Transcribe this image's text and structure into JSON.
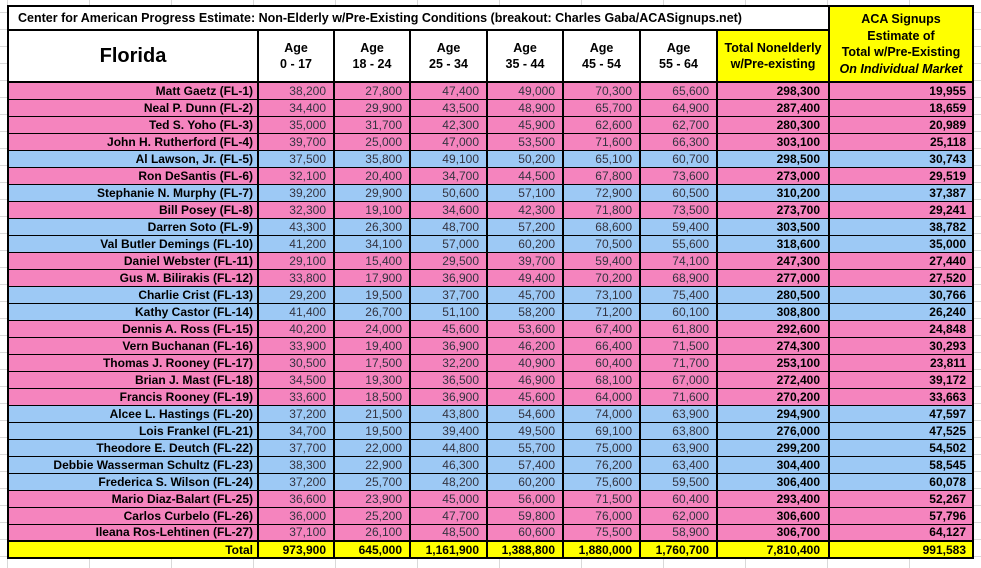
{
  "title": "Center for American Progress Estimate: Non-Elderly w/Pre-Existing Conditions (breakout: Charles Gaba/ACASignups.net)",
  "colors": {
    "republican_row": "#F584BE",
    "democrat_row": "#9DC9F5",
    "highlight_yellow": "#FFFF00",
    "border": "#000000",
    "number_text": "#333340"
  },
  "table": {
    "state_label": "Florida",
    "age_headers": [
      {
        "l1": "Age",
        "l2": "0 - 17"
      },
      {
        "l1": "Age",
        "l2": "18 - 24"
      },
      {
        "l1": "Age",
        "l2": "25 - 34"
      },
      {
        "l1": "Age",
        "l2": "35 - 44"
      },
      {
        "l1": "Age",
        "l2": "45 - 54"
      },
      {
        "l1": "Age",
        "l2": "55 - 64"
      }
    ],
    "total_header": {
      "l1": "Total Nonelderly",
      "l2": "w/Pre-existing"
    },
    "aca_header_lines": [
      "ACA Signups",
      "Estimate of",
      "Total w/Pre-Existing",
      "On Individual Market"
    ],
    "rows": [
      {
        "name": "Matt Gaetz (FL-1)",
        "party": "R",
        "ages": [
          "38,200",
          "27,800",
          "47,400",
          "49,000",
          "70,300",
          "65,600"
        ],
        "total": "298,300",
        "aca": "19,955"
      },
      {
        "name": "Neal P. Dunn (FL-2)",
        "party": "R",
        "ages": [
          "34,400",
          "29,900",
          "43,500",
          "48,900",
          "65,700",
          "64,900"
        ],
        "total": "287,400",
        "aca": "18,659"
      },
      {
        "name": "Ted S. Yoho (FL-3)",
        "party": "R",
        "ages": [
          "35,000",
          "31,700",
          "42,300",
          "45,900",
          "62,600",
          "62,700"
        ],
        "total": "280,300",
        "aca": "20,989"
      },
      {
        "name": "John H. Rutherford (FL-4)",
        "party": "R",
        "ages": [
          "39,700",
          "25,000",
          "47,000",
          "53,500",
          "71,600",
          "66,300"
        ],
        "total": "303,100",
        "aca": "25,118"
      },
      {
        "name": "Al Lawson, Jr. (FL-5)",
        "party": "D",
        "ages": [
          "37,500",
          "35,800",
          "49,100",
          "50,200",
          "65,100",
          "60,700"
        ],
        "total": "298,500",
        "aca": "30,743"
      },
      {
        "name": "Ron DeSantis (FL-6)",
        "party": "R",
        "ages": [
          "32,100",
          "20,400",
          "34,700",
          "44,500",
          "67,800",
          "73,600"
        ],
        "total": "273,000",
        "aca": "29,519"
      },
      {
        "name": "Stephanie N. Murphy (FL-7)",
        "party": "D",
        "ages": [
          "39,200",
          "29,900",
          "50,600",
          "57,100",
          "72,900",
          "60,500"
        ],
        "total": "310,200",
        "aca": "37,387"
      },
      {
        "name": "Bill Posey (FL-8)",
        "party": "R",
        "ages": [
          "32,300",
          "19,100",
          "34,600",
          "42,300",
          "71,800",
          "73,500"
        ],
        "total": "273,700",
        "aca": "29,241"
      },
      {
        "name": "Darren Soto (FL-9)",
        "party": "D",
        "ages": [
          "43,300",
          "26,300",
          "48,700",
          "57,200",
          "68,600",
          "59,400"
        ],
        "total": "303,500",
        "aca": "38,782"
      },
      {
        "name": "Val Butler Demings (FL-10)",
        "party": "D",
        "ages": [
          "41,200",
          "34,100",
          "57,000",
          "60,200",
          "70,500",
          "55,600"
        ],
        "total": "318,600",
        "aca": "35,000"
      },
      {
        "name": "Daniel Webster (FL-11)",
        "party": "R",
        "ages": [
          "29,100",
          "15,400",
          "29,500",
          "39,700",
          "59,400",
          "74,100"
        ],
        "total": "247,300",
        "aca": "27,440"
      },
      {
        "name": "Gus M. Bilirakis (FL-12)",
        "party": "R",
        "ages": [
          "33,800",
          "17,900",
          "36,900",
          "49,400",
          "70,200",
          "68,900"
        ],
        "total": "277,000",
        "aca": "27,520"
      },
      {
        "name": "Charlie Crist (FL-13)",
        "party": "D",
        "ages": [
          "29,200",
          "19,500",
          "37,700",
          "45,700",
          "73,100",
          "75,400"
        ],
        "total": "280,500",
        "aca": "30,766"
      },
      {
        "name": "Kathy Castor (FL-14)",
        "party": "D",
        "ages": [
          "41,400",
          "26,700",
          "51,100",
          "58,200",
          "71,200",
          "60,100"
        ],
        "total": "308,800",
        "aca": "26,240"
      },
      {
        "name": "Dennis A. Ross (FL-15)",
        "party": "R",
        "ages": [
          "40,200",
          "24,000",
          "45,600",
          "53,600",
          "67,400",
          "61,800"
        ],
        "total": "292,600",
        "aca": "24,848"
      },
      {
        "name": "Vern Buchanan (FL-16)",
        "party": "R",
        "ages": [
          "33,900",
          "19,400",
          "36,900",
          "46,200",
          "66,400",
          "71,500"
        ],
        "total": "274,300",
        "aca": "30,293"
      },
      {
        "name": "Thomas J. Rooney (FL-17)",
        "party": "R",
        "ages": [
          "30,500",
          "17,500",
          "32,200",
          "40,900",
          "60,400",
          "71,700"
        ],
        "total": "253,100",
        "aca": "23,811"
      },
      {
        "name": "Brian J. Mast (FL-18)",
        "party": "R",
        "ages": [
          "34,500",
          "19,300",
          "36,500",
          "46,900",
          "68,100",
          "67,000"
        ],
        "total": "272,400",
        "aca": "39,172"
      },
      {
        "name": "Francis Rooney (FL-19)",
        "party": "R",
        "ages": [
          "33,600",
          "18,500",
          "36,900",
          "45,600",
          "64,000",
          "71,600"
        ],
        "total": "270,200",
        "aca": "33,663"
      },
      {
        "name": "Alcee L. Hastings (FL-20)",
        "party": "D",
        "ages": [
          "37,200",
          "21,500",
          "43,800",
          "54,600",
          "74,000",
          "63,900"
        ],
        "total": "294,900",
        "aca": "47,597"
      },
      {
        "name": "Lois Frankel (FL-21)",
        "party": "D",
        "ages": [
          "34,700",
          "19,500",
          "39,400",
          "49,500",
          "69,100",
          "63,800"
        ],
        "total": "276,000",
        "aca": "47,525"
      },
      {
        "name": "Theodore E. Deutch (FL-22)",
        "party": "D",
        "ages": [
          "37,700",
          "22,000",
          "44,800",
          "55,700",
          "75,000",
          "63,900"
        ],
        "total": "299,200",
        "aca": "54,502"
      },
      {
        "name": "Debbie Wasserman Schultz (FL-23)",
        "party": "D",
        "ages": [
          "38,300",
          "22,900",
          "46,300",
          "57,400",
          "76,200",
          "63,400"
        ],
        "total": "304,400",
        "aca": "58,545"
      },
      {
        "name": "Frederica S. Wilson (FL-24)",
        "party": "D",
        "ages": [
          "37,200",
          "25,700",
          "48,200",
          "60,200",
          "75,600",
          "59,500"
        ],
        "total": "306,400",
        "aca": "60,078"
      },
      {
        "name": "Mario Diaz-Balart (FL-25)",
        "party": "R",
        "ages": [
          "36,600",
          "23,900",
          "45,000",
          "56,000",
          "71,500",
          "60,400"
        ],
        "total": "293,400",
        "aca": "52,267"
      },
      {
        "name": "Carlos Curbelo (FL-26)",
        "party": "R",
        "ages": [
          "36,000",
          "25,200",
          "47,700",
          "59,800",
          "76,000",
          "62,000"
        ],
        "total": "306,600",
        "aca": "57,796"
      },
      {
        "name": "Ileana Ros-Lehtinen (FL-27)",
        "party": "R",
        "ages": [
          "37,100",
          "26,100",
          "48,500",
          "60,600",
          "75,500",
          "58,900"
        ],
        "total": "306,700",
        "aca": "64,127"
      }
    ],
    "total_row": {
      "label": "Total",
      "ages": [
        "973,900",
        "645,000",
        "1,161,900",
        "1,388,800",
        "1,880,000",
        "1,760,700"
      ],
      "total": "7,810,400",
      "aca": "991,583"
    }
  }
}
